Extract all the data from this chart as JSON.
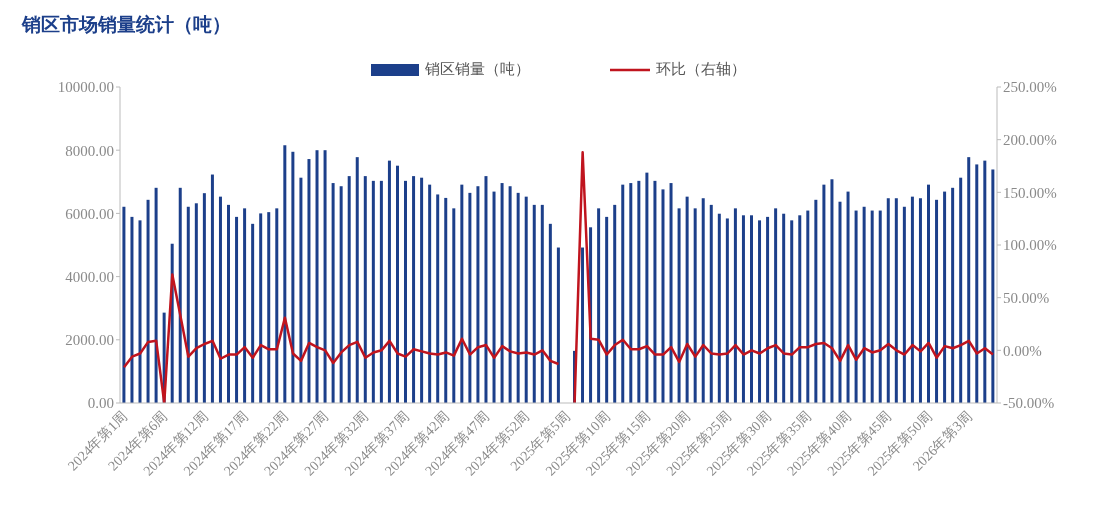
{
  "chart_data": {
    "type": "bar",
    "title": "销区市场销量统计（吨）",
    "legend": "top",
    "categories": [
      "2024年第1周",
      null,
      null,
      null,
      null,
      "2024年第6周",
      null,
      null,
      null,
      null,
      "2024年第12周",
      null,
      null,
      null,
      null,
      "2024年第17周",
      null,
      null,
      null,
      null,
      "2024年第22周",
      null,
      null,
      null,
      null,
      "2024年第27周",
      null,
      null,
      null,
      null,
      "2024年第32周",
      null,
      null,
      null,
      null,
      "2024年第37周",
      null,
      null,
      null,
      null,
      "2024年第42周",
      null,
      null,
      null,
      null,
      "2024年第47周",
      null,
      null,
      null,
      null,
      "2024年第52周",
      null,
      null,
      null,
      null,
      "2025年第5周",
      null,
      null,
      null,
      null,
      "2025年第10周",
      null,
      null,
      null,
      null,
      "2025年第15周",
      null,
      null,
      null,
      null,
      "2025年第20周",
      null,
      null,
      null,
      null,
      "2025年第25周",
      null,
      null,
      null,
      null,
      "2025年第30周",
      null,
      null,
      null,
      null,
      "2025年第35周",
      null,
      null,
      null,
      null,
      "2025年第40周",
      null,
      null,
      null,
      null,
      "2025年第45周",
      null,
      null,
      null,
      null,
      "2025年第50周",
      null,
      null,
      null,
      null,
      "2026年第3周",
      null,
      null,
      null
    ],
    "series": [
      {
        "name": "销区销量（吨）",
        "color": "#1c3f8a",
        "values": [
          6210,
          5890,
          5780,
          6430,
          6810,
          2860,
          5040,
          6810,
          6210,
          6320,
          6640,
          7230,
          6530,
          6270,
          5890,
          6160,
          5670,
          6000,
          6040,
          6160,
          8160,
          7950,
          7130,
          7720,
          8000,
          8000,
          6960,
          6860,
          7180,
          7780,
          7180,
          7030,
          7030,
          7670,
          7510,
          7030,
          7180,
          7130,
          6910,
          6600,
          6490,
          6160,
          6910,
          6650,
          6860,
          7180,
          6690,
          6960,
          6860,
          6650,
          6530,
          6270,
          6270,
          5670,
          4920,
          null,
          1650,
          4920,
          5560,
          6160,
          5890,
          6270,
          6910,
          6960,
          7030,
          7290,
          7030,
          6760,
          6960,
          6160,
          6530,
          6160,
          6480,
          6270,
          5990,
          5840,
          6160,
          5940,
          5940,
          5780,
          5890,
          6160,
          5990,
          5780,
          5940,
          6090,
          6430,
          6910,
          7080,
          6370,
          6690,
          6090,
          6210,
          6090,
          6090,
          6480,
          6480,
          6210,
          6530,
          6480,
          6910,
          6430,
          6690,
          6810,
          7130,
          7780,
          7550,
          7670,
          7390
        ]
      },
      {
        "name": "环比（右轴）",
        "type": "line",
        "axis": "y2",
        "color": "#c0141e",
        "values": [
          -16,
          -6,
          -3,
          8,
          9,
          -50,
          72,
          33,
          -6,
          2,
          6,
          9,
          -8,
          -4,
          -4,
          3,
          -7,
          5,
          1,
          1,
          31,
          -3,
          -10,
          7,
          3,
          0,
          -12,
          -2,
          5,
          8,
          -7,
          -2,
          0,
          9,
          -3,
          -6,
          1,
          -1,
          -3,
          -4,
          -2,
          -5,
          11,
          -4,
          3,
          5,
          -7,
          4,
          -1,
          -3,
          -2,
          -4,
          0,
          -10,
          -13,
          null,
          -50,
          188,
          11,
          10,
          -4,
          5,
          10,
          1,
          1,
          4,
          -4,
          -4,
          3,
          -11,
          6,
          -6,
          5,
          -3,
          -4,
          -3,
          5,
          -4,
          0,
          -3,
          2,
          5,
          -3,
          -4,
          3,
          3,
          6,
          7,
          2,
          -10,
          5,
          -9,
          2,
          -2,
          0,
          6,
          0,
          -4,
          5,
          -1,
          7,
          -7,
          4,
          2,
          5,
          9,
          -3,
          2,
          -4
        ]
      }
    ],
    "ylim": [
      0,
      10000
    ],
    "yticks": [
      {
        "value": 0,
        "label": "0.00"
      },
      {
        "value": 2000,
        "label": "2000.00"
      },
      {
        "value": 4000,
        "label": "4000.00"
      },
      {
        "value": 6000,
        "label": "6000.00"
      },
      {
        "value": 8000,
        "label": "8000.00"
      },
      {
        "value": 10000,
        "label": "10000.00"
      }
    ],
    "y2lim": [
      -50,
      250
    ],
    "y2ticks": [
      {
        "value": -50,
        "label": "-50.00%"
      },
      {
        "value": 0,
        "label": "0.00%"
      },
      {
        "value": 50,
        "label": "50.00%"
      },
      {
        "value": 100,
        "label": "100.00%"
      },
      {
        "value": 150,
        "label": "150.00%"
      },
      {
        "value": 200,
        "label": "200.00%"
      },
      {
        "value": 250,
        "label": "250.00%"
      }
    ]
  }
}
